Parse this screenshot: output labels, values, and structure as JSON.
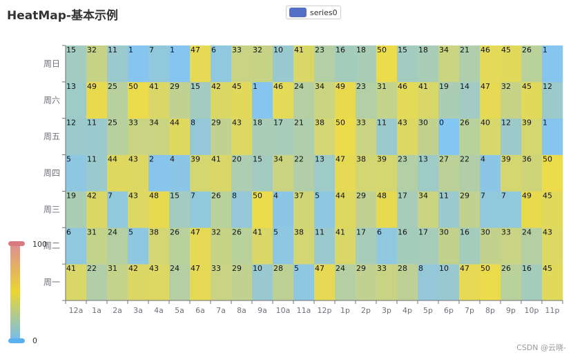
{
  "title": "HeatMap-基本示例",
  "legend": {
    "label": "series0",
    "color": "#5470c6"
  },
  "visual_map": {
    "min_label": "0",
    "max_label": "100",
    "colors": [
      "#5ab1ef",
      "#e5cf0d",
      "#d87a80"
    ]
  },
  "watermark": "CSDN @云晓-",
  "chart_data": {
    "type": "heatmap",
    "x_categories": [
      "12a",
      "1a",
      "2a",
      "3a",
      "4a",
      "5a",
      "6a",
      "7a",
      "8a",
      "9a",
      "10a",
      "11a",
      "12p",
      "1p",
      "2p",
      "3p",
      "4p",
      "5p",
      "6p",
      "7p",
      "8p",
      "9p",
      "10p",
      "11p"
    ],
    "y_categories": [
      "周一",
      "周二",
      "周三",
      "周四",
      "周五",
      "周六",
      "周日"
    ],
    "value_range": [
      0,
      100
    ],
    "values": [
      [
        41,
        22,
        31,
        42,
        43,
        24,
        47,
        33,
        29,
        10,
        28,
        5,
        47,
        24,
        29,
        33,
        28,
        8,
        10,
        47,
        50,
        26,
        16,
        45
      ],
      [
        6,
        31,
        24,
        5,
        38,
        26,
        47,
        32,
        26,
        41,
        5,
        38,
        11,
        41,
        17,
        6,
        16,
        17,
        30,
        16,
        30,
        33,
        24,
        43
      ],
      [
        19,
        42,
        7,
        43,
        48,
        15,
        7,
        26,
        8,
        50,
        4,
        37,
        5,
        44,
        29,
        48,
        17,
        34,
        11,
        29,
        7,
        7,
        49,
        45
      ],
      [
        5,
        11,
        44,
        43,
        2,
        4,
        39,
        41,
        20,
        15,
        34,
        22,
        13,
        47,
        38,
        39,
        23,
        13,
        27,
        22,
        4,
        39,
        36,
        50
      ],
      [
        12,
        11,
        25,
        33,
        34,
        44,
        8,
        29,
        43,
        18,
        17,
        21,
        38,
        50,
        33,
        11,
        43,
        30,
        0,
        26,
        40,
        12,
        39,
        1
      ],
      [
        13,
        49,
        25,
        50,
        41,
        29,
        15,
        42,
        45,
        1,
        46,
        24,
        34,
        49,
        23,
        31,
        46,
        41,
        19,
        14,
        47,
        32,
        45,
        12
      ],
      [
        15,
        32,
        11,
        1,
        7,
        1,
        47,
        6,
        33,
        32,
        10,
        41,
        23,
        16,
        18,
        50,
        15,
        18,
        34,
        21,
        46,
        45,
        26,
        1
      ]
    ]
  }
}
